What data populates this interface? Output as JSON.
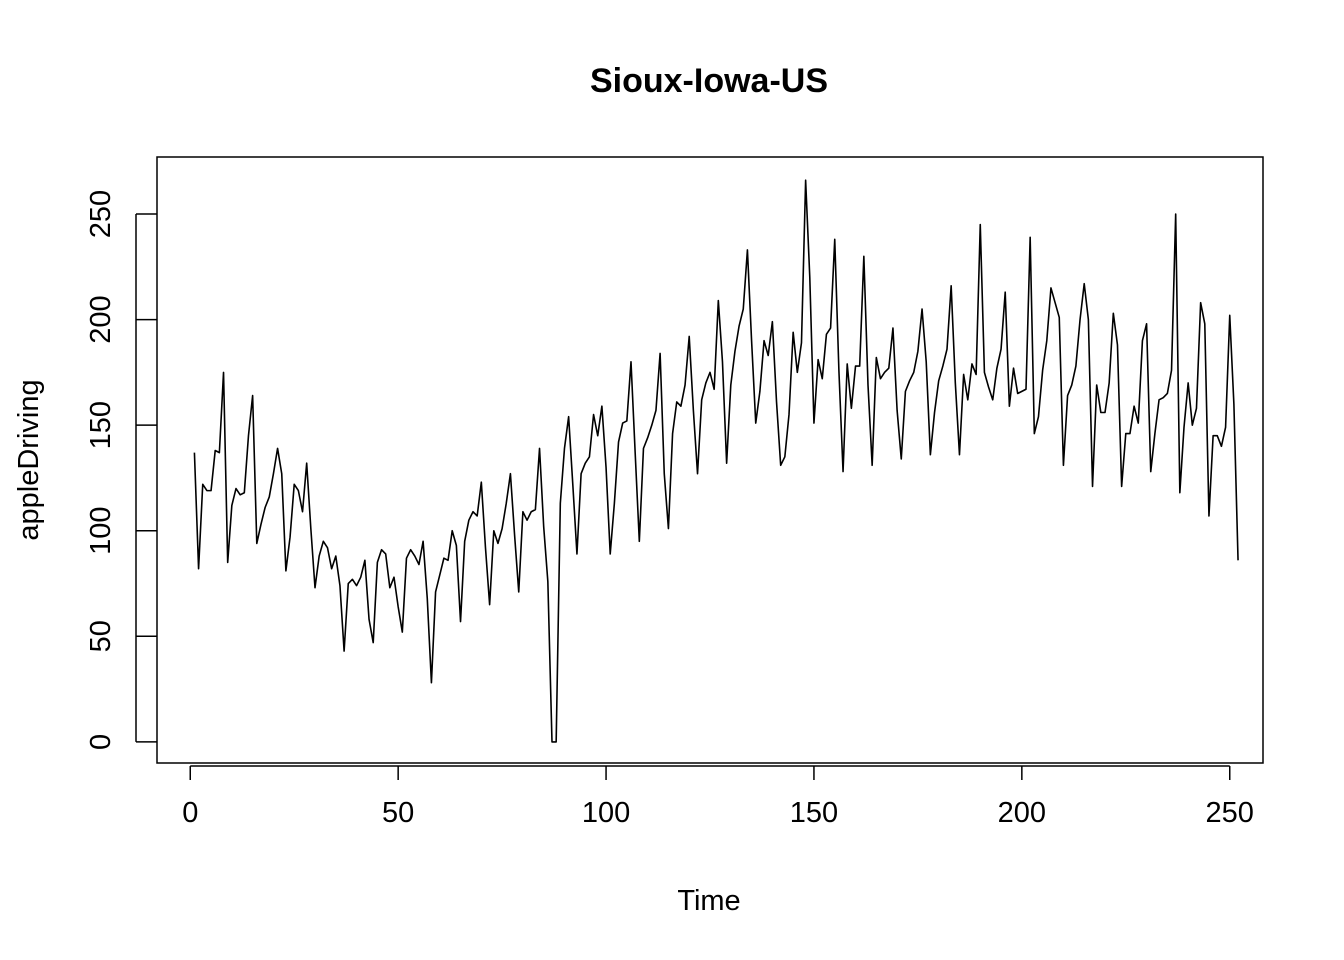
{
  "chart_data": {
    "type": "line",
    "title": "Sioux-Iowa-US",
    "xlabel": "Time",
    "ylabel": "appleDriving",
    "xlim": [
      -8,
      258
    ],
    "ylim": [
      -10,
      277
    ],
    "xticks": [
      0,
      50,
      100,
      150,
      200,
      250
    ],
    "yticks": [
      0,
      50,
      100,
      150,
      200,
      250
    ],
    "grid": false,
    "legend": "none",
    "series": [
      {
        "color": "#000000",
        "x_start": 1,
        "values": [
          137,
          82,
          122,
          119,
          119,
          138,
          137,
          175,
          85,
          112,
          120,
          117,
          118,
          145,
          164,
          94,
          103,
          111,
          116,
          127,
          139,
          127,
          81,
          97,
          122,
          119,
          109,
          132,
          101,
          73,
          88,
          95,
          92,
          82,
          88,
          74,
          43,
          75,
          77,
          74,
          78,
          86,
          58,
          47,
          85,
          91,
          89,
          73,
          78,
          64,
          52,
          87,
          91,
          88,
          84,
          95,
          68,
          28,
          71,
          79,
          87,
          86,
          100,
          93,
          57,
          95,
          105,
          109,
          107,
          123,
          92,
          65,
          100,
          94,
          101,
          113,
          127,
          98,
          71,
          109,
          105,
          109,
          110,
          139,
          102,
          76,
          0,
          0,
          113,
          139,
          154,
          122,
          89,
          127,
          132,
          135,
          155,
          145,
          159,
          130,
          89,
          113,
          142,
          151,
          152,
          180,
          137,
          95,
          139,
          144,
          150,
          157,
          184,
          127,
          101,
          146,
          161,
          159,
          169,
          192,
          157,
          127,
          162,
          170,
          175,
          167,
          209,
          180,
          132,
          169,
          185,
          197,
          205,
          233,
          190,
          151,
          166,
          190,
          183,
          199,
          161,
          131,
          135,
          155,
          194,
          175,
          189,
          266,
          220,
          151,
          181,
          172,
          193,
          196,
          238,
          176,
          128,
          179,
          158,
          178,
          178,
          230,
          169,
          131,
          182,
          172,
          175,
          177,
          196,
          157,
          134,
          166,
          171,
          175,
          185,
          205,
          180,
          136,
          156,
          171,
          178,
          186,
          216,
          170,
          136,
          174,
          162,
          179,
          174,
          245,
          175,
          168,
          162,
          177,
          186,
          213,
          159,
          177,
          165,
          166,
          167,
          239,
          146,
          154,
          176,
          190,
          215,
          208,
          201,
          131,
          164,
          169,
          178,
          200,
          217,
          200,
          121,
          169,
          156,
          156,
          170,
          203,
          188,
          121,
          146,
          146,
          159,
          151,
          190,
          198,
          128,
          146,
          162,
          163,
          165,
          176,
          250,
          118,
          149,
          170,
          150,
          158,
          208,
          198,
          107,
          145,
          145,
          140,
          149,
          202,
          160,
          86
        ]
      }
    ]
  }
}
